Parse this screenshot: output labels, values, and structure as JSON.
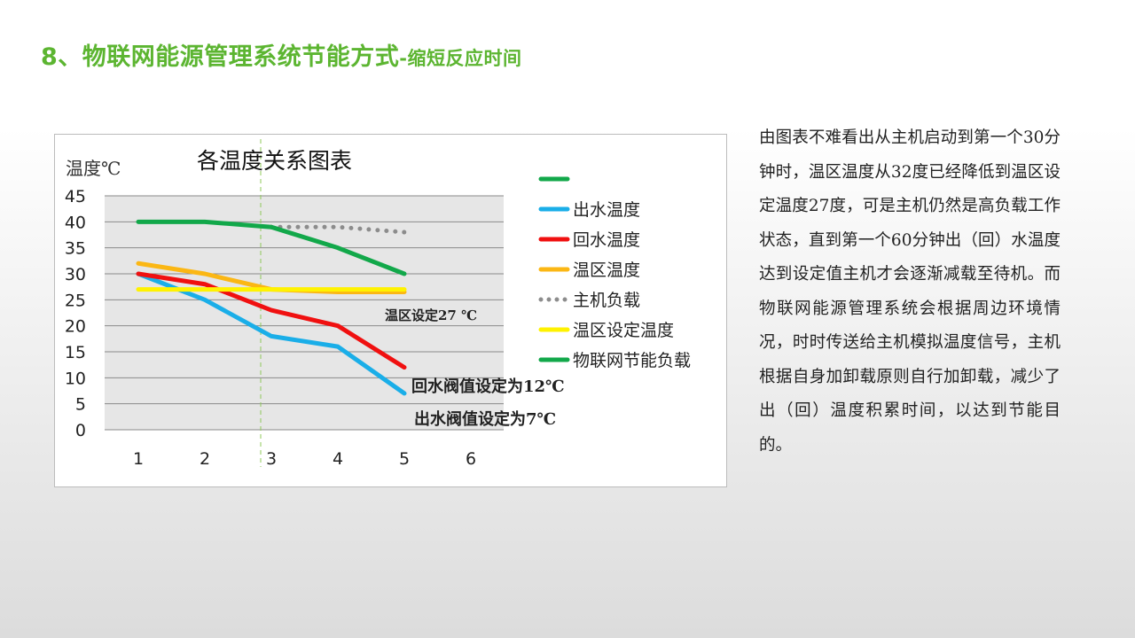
{
  "header": {
    "title_main": "8、物联网能源管理系统节能方式",
    "title_sub": "-缩短反应时间"
  },
  "colors": {
    "title": "#5cb531",
    "plot_bg": "#e6e6e6",
    "marker_line": "#8fc85a"
  },
  "chart_data": {
    "type": "line",
    "title": "各温度关系图表",
    "ylabel": "温度℃",
    "xlabel": "",
    "categories": [
      "1",
      "2",
      "3",
      "4",
      "5",
      "6"
    ],
    "ylim": [
      0,
      45
    ],
    "yticks": [
      0,
      5,
      10,
      15,
      20,
      25,
      30,
      35,
      40,
      45
    ],
    "grid": true,
    "legend": "right",
    "series": [
      {
        "name": "",
        "color": "#12a84a",
        "dash": false,
        "values": [
          40,
          40,
          39,
          null,
          null,
          null
        ]
      },
      {
        "name": "出水温度",
        "color": "#1aaee8",
        "dash": false,
        "values": [
          30,
          25,
          18,
          16,
          7,
          null
        ]
      },
      {
        "name": "回水温度",
        "color": "#f01010",
        "dash": false,
        "values": [
          30,
          28,
          23,
          20,
          12,
          null
        ]
      },
      {
        "name": "温区温度",
        "color": "#fbb714",
        "dash": false,
        "values": [
          32,
          30,
          27,
          26.5,
          26.5,
          null
        ]
      },
      {
        "name": "主机负载",
        "color": "#8c8c8c",
        "dash": true,
        "values": [
          null,
          null,
          39,
          39,
          38,
          null
        ]
      },
      {
        "name": "温区设定温度",
        "color": "#fff200",
        "dash": false,
        "values": [
          27,
          27,
          27,
          27,
          27,
          null
        ]
      },
      {
        "name": "物联网节能负载",
        "color": "#12a84a",
        "dash": false,
        "values": [
          null,
          null,
          39,
          35,
          30,
          null
        ]
      }
    ],
    "annotations": [
      {
        "text": "温区设定27 ℃"
      },
      {
        "text": "回水阀值设定为12℃"
      },
      {
        "text": "出水阀值设定为7℃"
      }
    ]
  },
  "description": "由图表不难看出从主机启动到第一个30分钟时，温区温度从32度已经降低到温区设定温度27度，可是主机仍然是高负载工作状态，直到第一个60分钟出（回）水温度达到设定值主机才会逐渐减载至待机。而物联网能源管理系统会根据周边环境情况，时时传送给主机模拟温度信号，主机根据自身加卸载原则自行加卸载，减少了出（回）温度积累时间，以达到节能目的。"
}
